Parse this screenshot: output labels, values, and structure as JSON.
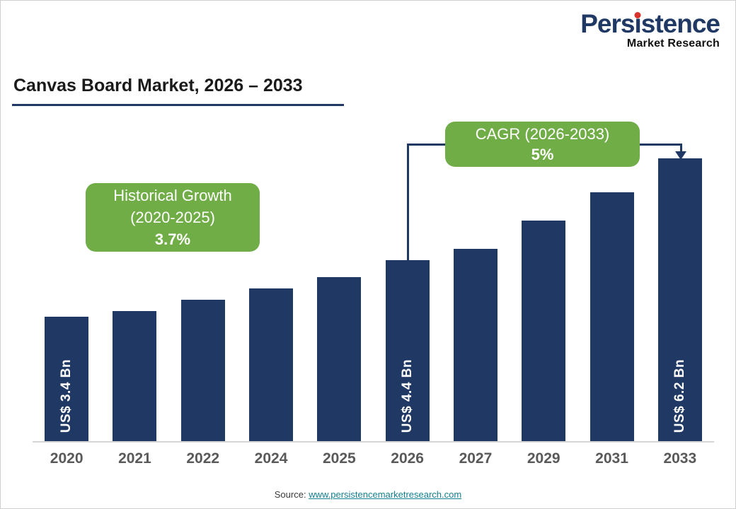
{
  "logo": {
    "pre": "Pers",
    "i": "i",
    "post": "stence",
    "subtitle": "Market Research"
  },
  "title": "Canvas Board Market, 2026 – 2033",
  "callouts": {
    "historical": {
      "line1": "Historical Growth",
      "line2": "(2020-2025)",
      "value": "3.7%"
    },
    "cagr": {
      "line1": "CAGR (2026-2033)",
      "value": "5%"
    }
  },
  "source": {
    "prefix": "Source: ",
    "link": "www.persistencemarketresearch.com"
  },
  "colors": {
    "bar": "#203864",
    "accent_green": "#70AD47",
    "navy": "#1F3864",
    "link": "#157E8F",
    "axis_label": "#595959"
  },
  "chart_data": {
    "type": "bar",
    "title": "Canvas Board Market, 2026 – 2033",
    "categories": [
      "2020",
      "2021",
      "2022",
      "2024",
      "2025",
      "2026",
      "2027",
      "2029",
      "2031",
      "2033"
    ],
    "values": [
      3.4,
      3.5,
      3.7,
      3.9,
      4.1,
      4.4,
      4.6,
      5.1,
      5.6,
      6.2
    ],
    "unit": "US$ Bn",
    "bar_labels": {
      "2020": "US$ 3.4 Bn",
      "2026": "US$ 4.4 Bn",
      "2033": "US$ 6.2 Bn"
    },
    "xlabel": "",
    "ylabel": "",
    "ylim": [
      0,
      6.5
    ],
    "grid": false,
    "legend": false,
    "annotations": [
      "Historical Growth (2020-2025) 3.7%",
      "CAGR (2026-2033) 5%"
    ]
  }
}
